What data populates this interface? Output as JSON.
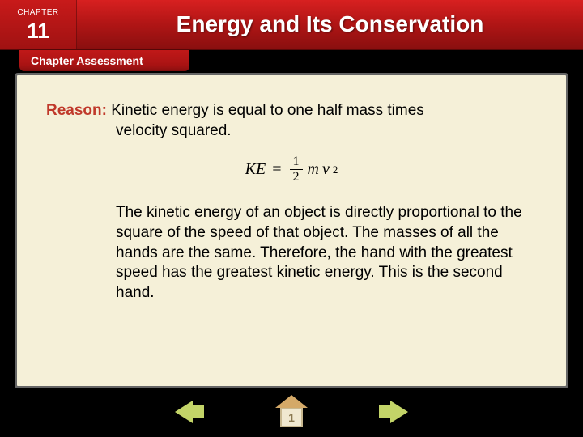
{
  "header": {
    "chapter_label": "CHAPTER",
    "chapter_number": "11",
    "title": "Energy and Its Conservation"
  },
  "subtitle": "Chapter Assessment",
  "content": {
    "reason_label": "Reason:",
    "reason_text_1": "Kinetic energy is equal to one half mass times",
    "reason_text_2": "velocity squared.",
    "equation": {
      "lhs": "KE",
      "eq": "=",
      "frac_num": "1",
      "frac_den": "2",
      "m": "m",
      "v": "v",
      "exp": "2"
    },
    "explanation": "The kinetic energy of an object is directly proportional to the square of the speed of that object. The masses of all the hands are the same. Therefore, the hand with the greatest speed has the greatest kinetic energy. This is the second hand."
  },
  "nav": {
    "home_label": "1"
  },
  "colors": {
    "header_red": "#b01515",
    "panel_bg": "#f5f0d8",
    "reason_color": "#c0392b",
    "arrow_color": "#c3d468"
  }
}
